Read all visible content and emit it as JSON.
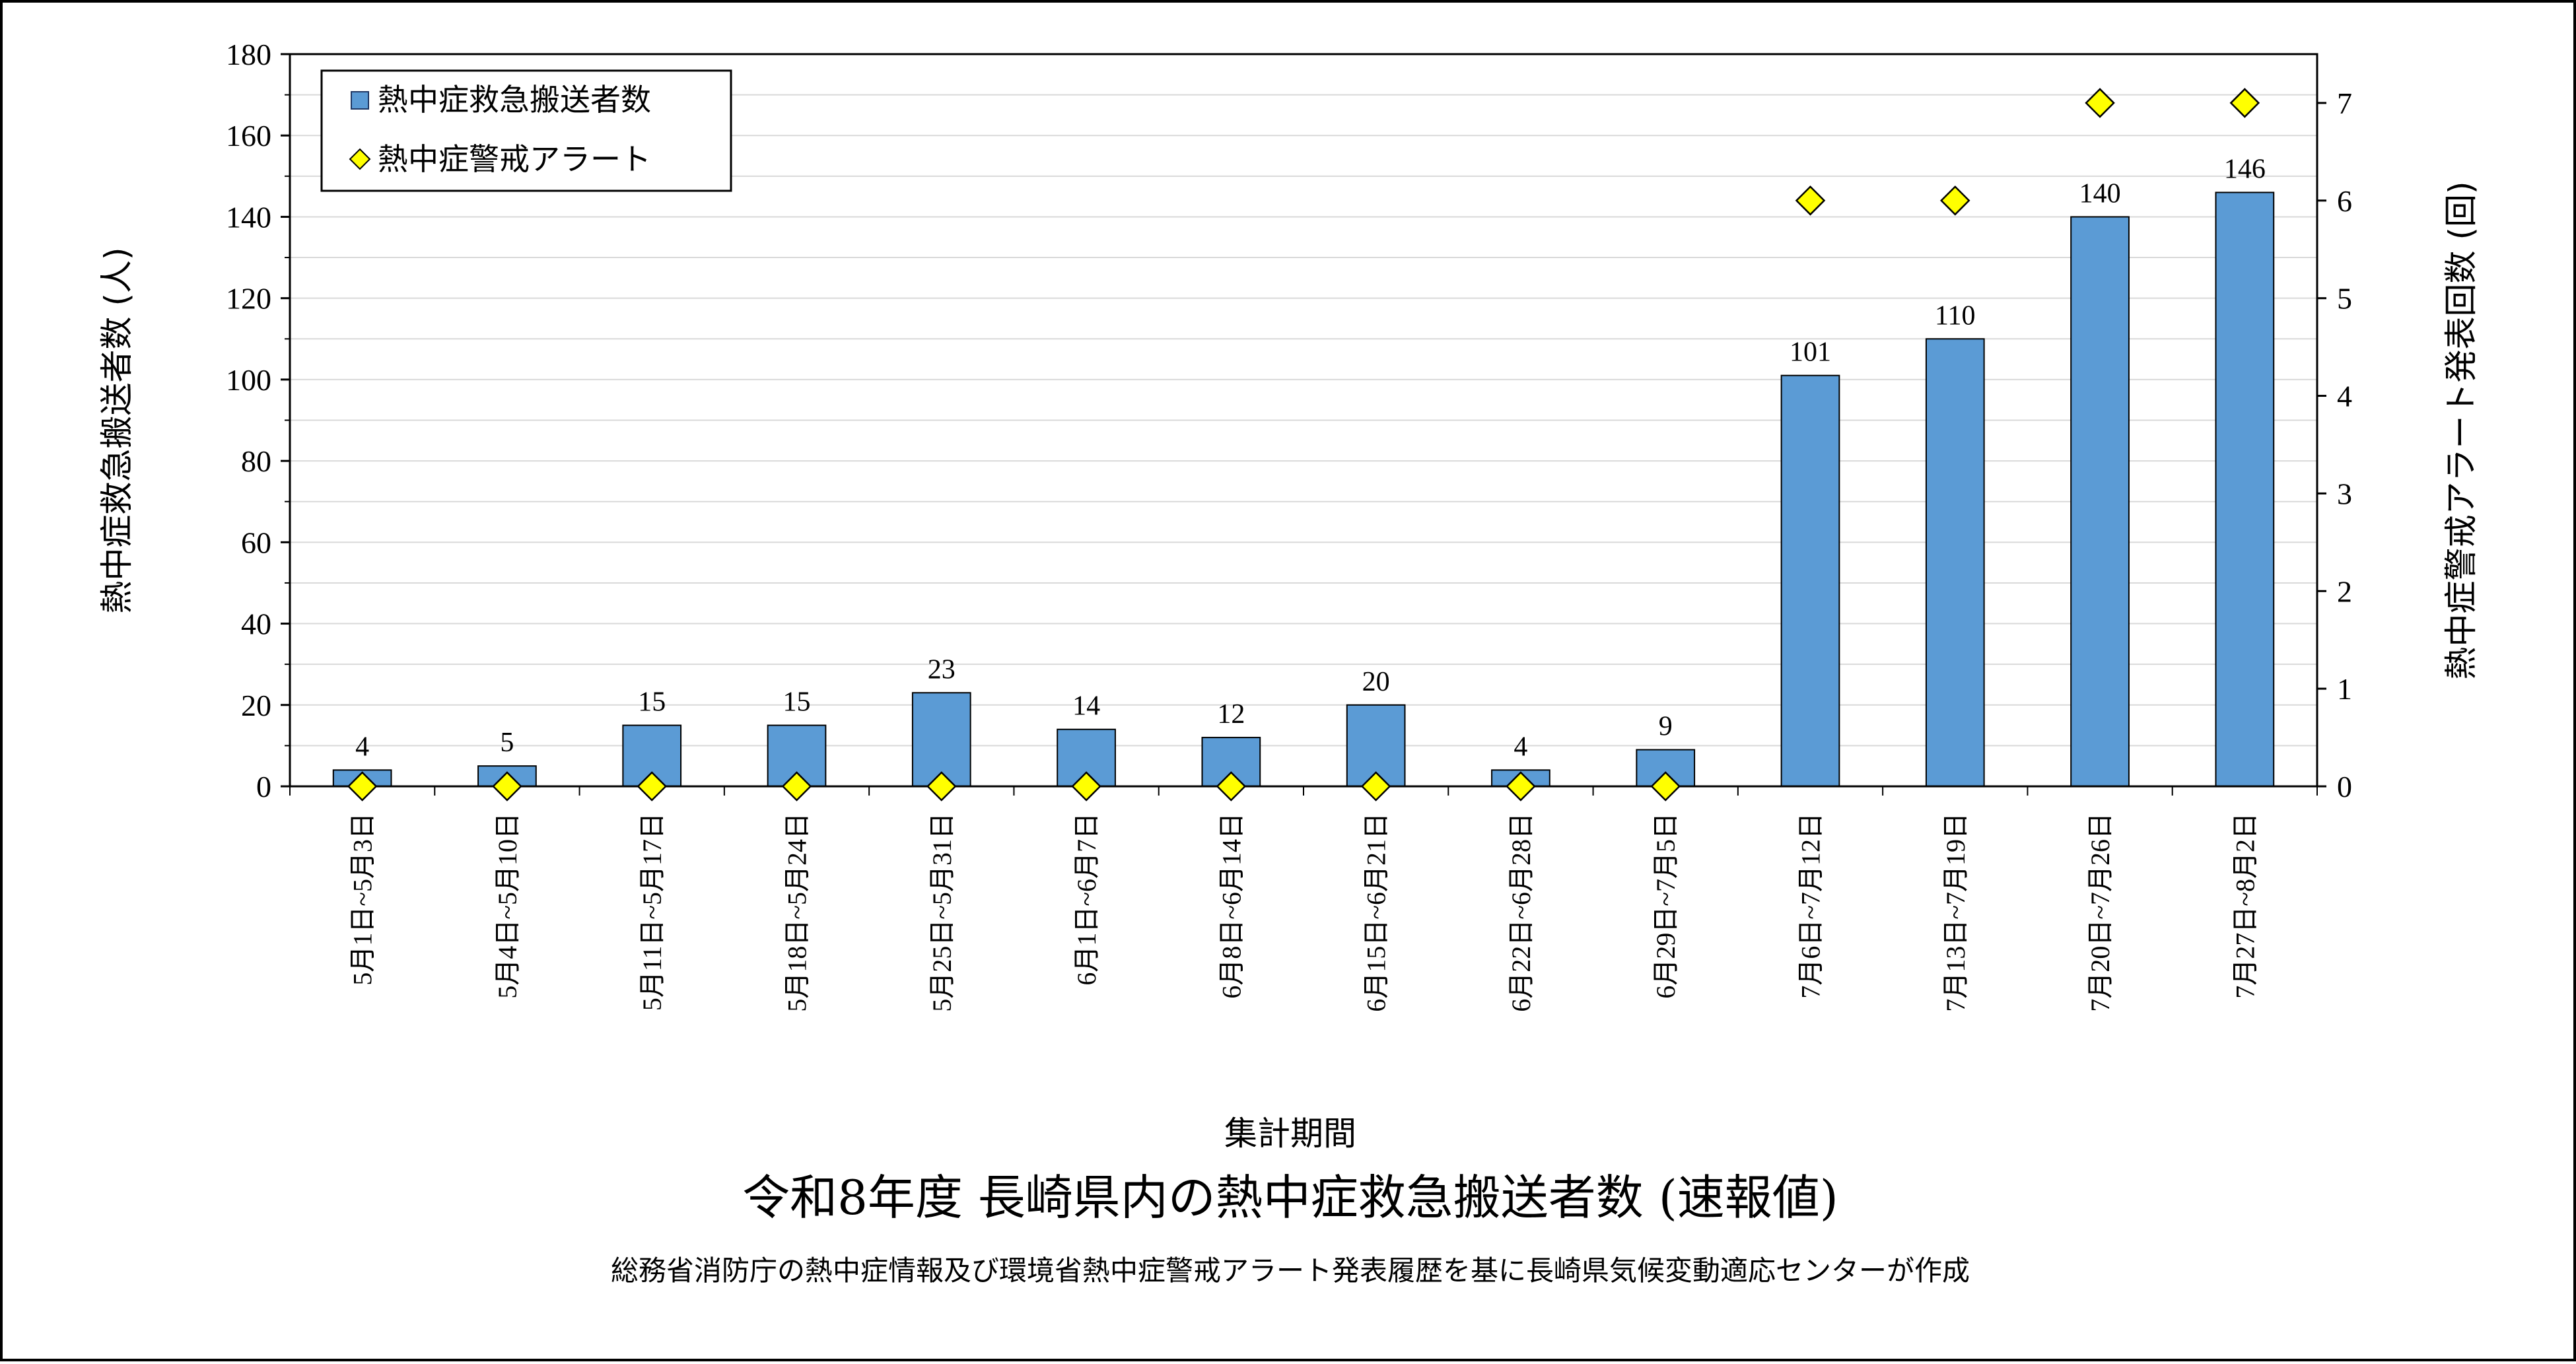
{
  "chart_data": {
    "type": "bar",
    "title": "令和8年度 長崎県内の熱中症救急搬送者数 (速報値)",
    "subtitle": "総務省消防庁の熱中症情報及び環境省熱中症警戒アラート発表履歴を基に長崎県気候変動適応センターが作成",
    "xlabel": "集計期間",
    "ylabel": "熱中症救急搬送者数 (人)",
    "y2label": "熱中症警戒アラート発表回数 (回)",
    "ylim": [
      0,
      180
    ],
    "y2lim": [
      0,
      7.5
    ],
    "yticks": [
      0,
      20,
      40,
      60,
      80,
      100,
      120,
      140,
      160,
      180
    ],
    "y2ticks": [
      0,
      1,
      2,
      3,
      4,
      5,
      6,
      7
    ],
    "grid": true,
    "legend_position": "top-left",
    "categories": [
      "5月1日~5月3日",
      "5月4日~5月10日",
      "5月11日~5月17日",
      "5月18日~5月24日",
      "5月25日~5月31日",
      "6月1日~6月7日",
      "6月8日~6月14日",
      "6月15日~6月21日",
      "6月22日~6月28日",
      "6月29日~7月5日",
      "7月6日~7月12日",
      "7月13日~7月19日",
      "7月20日~7月26日",
      "7月27日~8月2日"
    ],
    "series": [
      {
        "name": "熱中症救急搬送者数",
        "type": "bar",
        "axis": "left",
        "color": "#5b9bd5",
        "values": [
          4,
          5,
          15,
          15,
          23,
          14,
          12,
          20,
          4,
          9,
          101,
          110,
          140,
          146
        ]
      },
      {
        "name": "熱中症警戒アラート",
        "type": "scatter",
        "marker": "diamond",
        "axis": "right",
        "color": "#ffff00",
        "values": [
          0,
          0,
          0,
          0,
          0,
          0,
          0,
          0,
          0,
          0,
          6,
          6,
          7,
          7
        ]
      }
    ]
  }
}
